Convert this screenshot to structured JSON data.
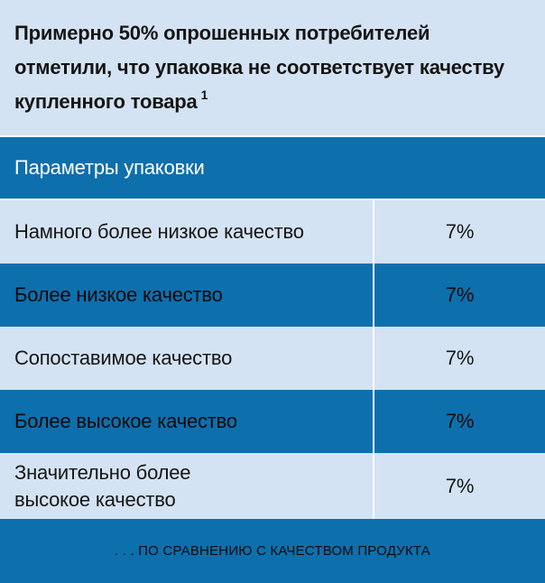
{
  "title": {
    "text": "Примерно 50% опрошенных потребителей отметили, что упаковка не соответствует качеству купленного товара",
    "footnote_mark": "1"
  },
  "table": {
    "header": "Параметры  упаковки",
    "rows": [
      {
        "label": "Намного более низкое качество",
        "value": "7%"
      },
      {
        "label": "Более низкое качество",
        "value": "7%"
      },
      {
        "label": "Сопоставимое качество",
        "value": "7%"
      },
      {
        "label": "Более высокое качество",
        "value": "7%"
      },
      {
        "label": "Значительно более высокое  качество",
        "value": "7%"
      }
    ]
  },
  "footer": {
    "text": ". . . по сравнению с качеством продукта"
  },
  "colors": {
    "light_band": "#d4e3f3",
    "dark_band": "#0e6fad",
    "header_text": "#ffffff"
  }
}
